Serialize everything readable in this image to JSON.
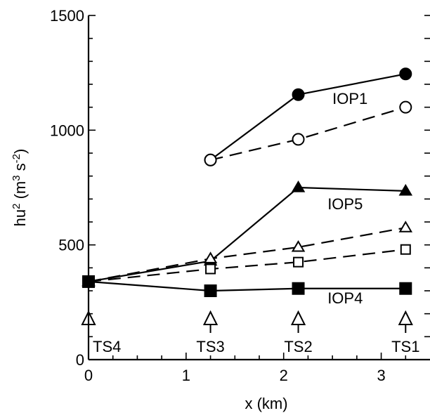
{
  "chart_data": {
    "type": "line",
    "xlabel": "x (km)",
    "ylabel_parts": {
      "base": "hu",
      "sup1": "2",
      "mid": " (m",
      "sup2": "3",
      "mid2": " s",
      "sup3": "-2",
      "end": ")"
    },
    "xlim": [
      0,
      3.5
    ],
    "ylim": [
      0,
      1500
    ],
    "xticks": [
      0,
      1,
      2,
      3
    ],
    "yticks": [
      0,
      500,
      1000,
      1500
    ],
    "series": [
      {
        "id": "iop1-solid",
        "style": "solid",
        "marker": "circle",
        "filled": true,
        "x": [
          1.25,
          2.15,
          3.25
        ],
        "y": [
          870,
          1155,
          1245
        ]
      },
      {
        "id": "iop1-dashed",
        "style": "dashed",
        "marker": "circle",
        "filled": false,
        "x": [
          1.25,
          2.15,
          3.25
        ],
        "y": [
          870,
          960,
          1100
        ]
      },
      {
        "id": "iop5-solid",
        "style": "solid",
        "marker": "triangle",
        "filled": true,
        "x": [
          0,
          1.25,
          2.15,
          3.25
        ],
        "y": [
          340,
          430,
          750,
          735
        ]
      },
      {
        "id": "iop5-dashed",
        "style": "dashed",
        "marker": "triangle",
        "filled": false,
        "x": [
          0,
          1.25,
          2.15,
          3.25
        ],
        "y": [
          340,
          440,
          490,
          575
        ]
      },
      {
        "id": "iop4-dashed",
        "style": "dashed",
        "marker": "square",
        "filled": false,
        "x": [
          0,
          1.25,
          2.15,
          3.25
        ],
        "y": [
          340,
          395,
          425,
          480
        ]
      },
      {
        "id": "iop4-solid",
        "style": "solid",
        "marker": "square",
        "filled": true,
        "x": [
          0,
          1.25,
          2.15,
          3.25
        ],
        "y": [
          340,
          300,
          310,
          310
        ]
      }
    ],
    "annotations": [
      {
        "text": "IOP1",
        "x": 2.5,
        "y": 1115
      },
      {
        "text": "IOP5",
        "x": 2.45,
        "y": 655
      },
      {
        "text": "IOP4",
        "x": 2.45,
        "y": 245
      }
    ],
    "stations": [
      {
        "name": "TS4",
        "x": 0
      },
      {
        "name": "TS3",
        "x": 1.25
      },
      {
        "name": "TS2",
        "x": 2.15
      },
      {
        "name": "TS1",
        "x": 3.25
      }
    ]
  }
}
